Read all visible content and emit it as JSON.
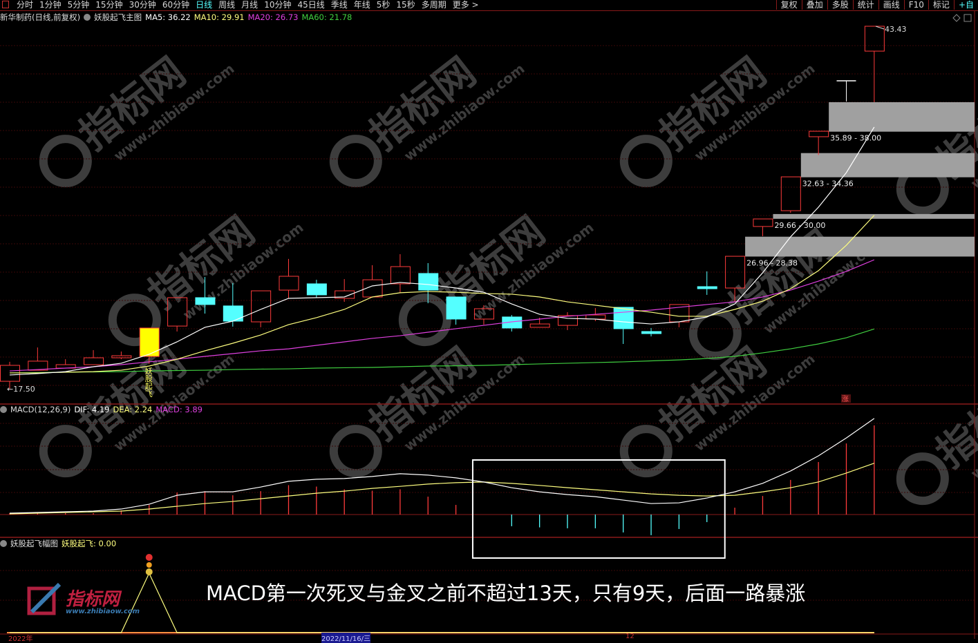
{
  "toolbar": {
    "periods": [
      "分时",
      "1分钟",
      "5分钟",
      "15分钟",
      "30分钟",
      "60分钟",
      "日线",
      "周线",
      "月线",
      "10分钟",
      "45日线",
      "季线",
      "年线",
      "5秒",
      "15秒",
      "多周期",
      "更多 >"
    ],
    "active_period": "日线",
    "actions": [
      "复权",
      "叠加",
      "多股",
      "统计",
      "画线",
      "F10",
      "标记",
      "+自"
    ]
  },
  "main_legend": {
    "stock": "新华制药(日线,前复权)",
    "indicator": "妖股起飞主图",
    "ma5": "MA5: 36.22",
    "ma10": "MA10: 29.91",
    "ma20": "MA20: 26.73",
    "ma60": "MA60: 21.78"
  },
  "macd_legend": {
    "name": "MACD(12,26,9)",
    "dif": "DIF: 4.19",
    "dea": "DEA: 2.24",
    "macd": "MACD: 3.89"
  },
  "signal_legend": {
    "name": "妖股起飞幅图",
    "value": "妖股起飞: 0.00"
  },
  "colors": {
    "up": "#ff3b3b",
    "down": "#54ffff",
    "signal": "#ffff00",
    "ma5": "#ffffff",
    "ma10": "#ffff80",
    "ma20": "#e040e0",
    "ma60": "#40d040",
    "zone": "#a0a0a0"
  },
  "price_labels": {
    "low": "17.50",
    "high": "43.43"
  },
  "signal_text": "妖股起飞",
  "limit_badge": "涨",
  "annotation": "MACD第一次死叉与金叉之前不超过13天，只有9天，后面一路暴涨",
  "watermark": {
    "brand": "指标网",
    "url": "www.zhibiaow.com"
  },
  "dates": [
    "2022年",
    "2022/11/16/三",
    "12"
  ],
  "chart_data": [
    {
      "type": "candlestick",
      "signal_index": 5,
      "open": [
        18.04,
        18.83,
        18.98,
        19.23,
        19.72,
        19.82,
        21.99,
        24.02,
        23.43,
        22.29,
        24.56,
        25.01,
        23.97,
        24.07,
        25.01,
        25.75,
        24.07,
        22.49,
        22.64,
        21.9,
        22.04,
        22.49,
        23.33,
        21.6,
        22.29,
        24.81,
        24.71,
        29.11,
        30.24,
        35.53,
        39.53,
        41.65
      ],
      "close": [
        19.18,
        19.48,
        19.23,
        19.72,
        19.87,
        21.85,
        24.02,
        23.53,
        22.34,
        24.51,
        25.55,
        24.22,
        24.51,
        25.3,
        26.24,
        24.56,
        22.49,
        23.23,
        21.85,
        22.14,
        22.74,
        22.78,
        21.8,
        21.45,
        23.53,
        24.66,
        26.98,
        29.65,
        32.66,
        35.92,
        39.53,
        43.43
      ],
      "high": [
        19.43,
        20.46,
        19.62,
        20.27,
        20.17,
        21.85,
        24.02,
        25.5,
        25.06,
        24.51,
        26.79,
        25.3,
        25.35,
        26.34,
        27.13,
        26.49,
        24.07,
        23.48,
        22.78,
        22.59,
        22.98,
        23.28,
        23.33,
        21.85,
        23.53,
        25.9,
        26.98,
        29.65,
        32.66,
        35.92,
        39.53,
        43.43
      ],
      "low": [
        17.5,
        18.83,
        18.98,
        19.23,
        19.62,
        19.28,
        21.6,
        22.88,
        21.95,
        21.9,
        23.97,
        24.02,
        23.72,
        24.02,
        24.37,
        23.62,
        22.09,
        22.09,
        21.6,
        21.9,
        21.7,
        22.34,
        20.71,
        21.25,
        21.9,
        24.22,
        23.72,
        28.42,
        30.09,
        34.22,
        38.05,
        38.0
      ],
      "ma5": [
        18.49,
        18.59,
        18.73,
        19.08,
        19.33,
        19.97,
        20.86,
        21.9,
        22.34,
        23.18,
        23.97,
        24.02,
        24.07,
        24.86,
        25.11,
        24.96,
        24.71,
        24.41,
        23.57,
        22.83,
        22.54,
        22.49,
        22.29,
        22.14,
        22.29,
        22.64,
        23.57,
        25.8,
        28.37,
        30.49,
        32.96,
        36.22
      ],
      "ma10": [
        18.64,
        18.64,
        18.69,
        18.73,
        18.83,
        19.13,
        19.62,
        20.22,
        20.76,
        21.35,
        22.09,
        22.59,
        23.18,
        24.07,
        24.37,
        24.46,
        24.41,
        24.32,
        24.27,
        24.07,
        23.72,
        23.48,
        23.23,
        22.98,
        22.69,
        22.69,
        23.18,
        23.77,
        24.66,
        25.95,
        27.77,
        29.91
      ],
      "ma20": [
        18.78,
        18.88,
        18.98,
        19.08,
        19.23,
        19.43,
        19.62,
        19.82,
        20.02,
        20.22,
        20.36,
        20.61,
        20.86,
        21.11,
        21.3,
        21.55,
        21.8,
        22.04,
        22.29,
        22.49,
        22.69,
        22.83,
        22.98,
        23.13,
        23.33,
        23.53,
        23.72,
        24.07,
        24.56,
        25.2,
        25.9,
        26.73
      ],
      "ma60": [
        18.64,
        18.66,
        18.69,
        18.71,
        18.73,
        18.78,
        18.81,
        18.83,
        18.88,
        18.91,
        18.93,
        18.98,
        19.01,
        19.03,
        19.08,
        19.13,
        19.15,
        19.18,
        19.23,
        19.28,
        19.33,
        19.38,
        19.43,
        19.5,
        19.57,
        19.67,
        19.82,
        20.07,
        20.36,
        20.71,
        21.15,
        21.78
      ],
      "zones": [
        {
          "start_index": 26,
          "low": 26.96,
          "high": 28.38,
          "label": "26.96 - 28.38"
        },
        {
          "start_index": 27,
          "low": 29.66,
          "high": 30.0,
          "label": "29.66 - 30.00"
        },
        {
          "start_index": 28,
          "low": 32.63,
          "high": 34.36,
          "label": "32.63 - 34.36"
        },
        {
          "start_index": 29,
          "low": 35.89,
          "high": 38.0,
          "label": "35.89 - 38.00"
        }
      ],
      "ylim": [
        17.5,
        43.43
      ]
    },
    {
      "type": "macd",
      "dif": [
        0.06,
        0.09,
        0.12,
        0.15,
        0.24,
        0.45,
        0.84,
        0.99,
        0.99,
        1.2,
        1.45,
        1.54,
        1.57,
        1.66,
        1.78,
        1.72,
        1.6,
        1.42,
        1.17,
        0.99,
        0.87,
        0.78,
        0.63,
        0.48,
        0.51,
        0.72,
        0.99,
        1.36,
        1.9,
        2.56,
        3.34,
        4.19
      ],
      "dea": [
        0.03,
        0.06,
        0.09,
        0.12,
        0.15,
        0.24,
        0.36,
        0.48,
        0.57,
        0.69,
        0.81,
        0.93,
        1.02,
        1.14,
        1.23,
        1.33,
        1.39,
        1.42,
        1.36,
        1.27,
        1.17,
        1.08,
        0.99,
        0.9,
        0.84,
        0.81,
        0.84,
        0.99,
        1.17,
        1.42,
        1.81,
        2.24
      ],
      "macd": [
        0.06,
        0.06,
        0.06,
        0.06,
        0.18,
        0.42,
        0.96,
        1.02,
        0.84,
        1.02,
        1.28,
        1.22,
        1.1,
        1.04,
        1.1,
        0.78,
        0.42,
        0.0,
        -0.51,
        -0.56,
        -0.6,
        -0.6,
        -0.78,
        -0.9,
        -0.63,
        -0.33,
        0.3,
        0.81,
        1.51,
        2.29,
        3.1,
        3.89
      ],
      "highlight_range": [
        17,
        25
      ]
    },
    {
      "type": "line",
      "name": "妖股起飞",
      "values": [
        0,
        0,
        0,
        0,
        0,
        1,
        0,
        0,
        0,
        0,
        0,
        0,
        0,
        0,
        0,
        0,
        0,
        0,
        0,
        0,
        0,
        0,
        0,
        0,
        0,
        0,
        0,
        0,
        0,
        0,
        0,
        0
      ]
    }
  ]
}
